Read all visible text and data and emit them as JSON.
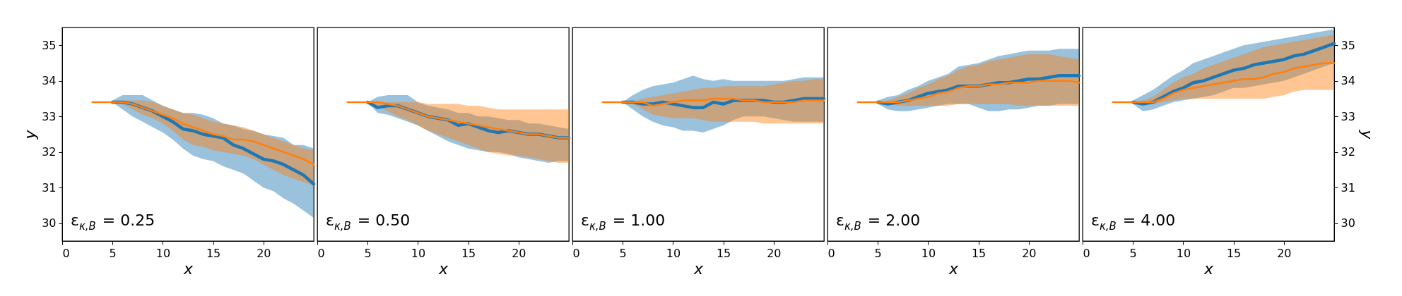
{
  "chart_data": [
    {
      "type": "line",
      "xlabel": "x",
      "ylabel": "y",
      "xlim": [
        0,
        25
      ],
      "xticks": [
        0,
        5,
        10,
        15,
        20
      ],
      "ylim": [
        29.5,
        35.5
      ],
      "yticks": [
        30,
        31,
        32,
        33,
        34,
        35
      ],
      "annotations": [
        "ε$_{κ,B}$ = 0.25"
      ],
      "x": [
        3,
        4,
        5,
        6,
        7,
        8,
        9,
        10,
        11,
        12,
        13,
        14,
        15,
        16,
        17,
        18,
        19,
        20,
        21,
        22,
        23,
        24,
        25
      ],
      "series": [
        {
          "color": "#1f77b4",
          "values": [
            null,
            null,
            33.4,
            33.4,
            33.35,
            33.25,
            33.15,
            33.0,
            32.85,
            32.65,
            32.6,
            32.5,
            32.45,
            32.4,
            32.2,
            32.1,
            31.95,
            31.8,
            31.75,
            31.65,
            31.5,
            31.35,
            31.1
          ],
          "lower": [
            null,
            null,
            33.4,
            33.2,
            33.0,
            32.85,
            32.7,
            32.55,
            32.35,
            32.1,
            31.9,
            31.8,
            31.75,
            31.6,
            31.5,
            31.4,
            31.2,
            31.0,
            30.9,
            30.7,
            30.55,
            30.35,
            30.15
          ],
          "upper": [
            null,
            null,
            33.45,
            33.6,
            33.6,
            33.6,
            33.45,
            33.3,
            33.2,
            33.1,
            33.1,
            33.05,
            32.95,
            32.8,
            32.75,
            32.65,
            32.6,
            32.5,
            32.45,
            32.4,
            32.2,
            32.2,
            32.1
          ]
        },
        {
          "color": "#ff7f0e",
          "values": [
            33.4,
            33.4,
            33.4,
            33.4,
            33.35,
            33.25,
            33.15,
            33.05,
            32.95,
            32.8,
            32.7,
            32.6,
            32.5,
            32.45,
            32.35,
            32.35,
            32.3,
            32.2,
            32.1,
            32.0,
            31.9,
            31.8,
            31.65
          ],
          "lower": [
            33.4,
            33.4,
            33.4,
            33.35,
            33.2,
            33.05,
            32.95,
            32.8,
            32.6,
            32.35,
            32.2,
            32.15,
            32.05,
            32.0,
            31.95,
            31.9,
            31.8,
            31.65,
            31.5,
            31.35,
            31.25,
            31.15,
            31.05
          ],
          "upper": [
            33.4,
            33.4,
            33.4,
            33.45,
            33.45,
            33.45,
            33.4,
            33.3,
            33.2,
            33.1,
            33.05,
            32.95,
            32.85,
            32.8,
            32.75,
            32.7,
            32.6,
            32.5,
            32.4,
            32.3,
            32.2,
            32.1,
            32.05
          ]
        }
      ]
    },
    {
      "type": "line",
      "xlabel": "x",
      "xlim": [
        0,
        25
      ],
      "xticks": [
        0,
        5,
        10,
        15,
        20
      ],
      "ylim": [
        29.5,
        35.5
      ],
      "yticks": [
        30,
        31,
        32,
        33,
        34,
        35
      ],
      "tick_labels": "x",
      "annotations": [
        "ε$_{κ,B}$ = 0.50"
      ],
      "x": [
        3,
        4,
        5,
        6,
        7,
        8,
        9,
        10,
        11,
        12,
        13,
        14,
        15,
        16,
        17,
        18,
        19,
        20,
        21,
        22,
        23,
        24,
        25
      ],
      "series": [
        {
          "color": "#1f77b4",
          "values": [
            null,
            null,
            33.4,
            33.25,
            33.3,
            33.3,
            33.2,
            33.1,
            33.0,
            32.95,
            32.9,
            32.75,
            32.8,
            32.7,
            32.6,
            32.55,
            32.6,
            32.55,
            32.5,
            32.5,
            32.45,
            32.4,
            32.4
          ],
          "lower": [
            null,
            null,
            33.4,
            33.1,
            33.05,
            32.95,
            32.85,
            32.75,
            32.6,
            32.45,
            32.3,
            32.2,
            32.1,
            32.05,
            32.0,
            32.0,
            31.95,
            31.85,
            31.8,
            31.75,
            31.7,
            31.75,
            31.75
          ],
          "upper": [
            null,
            null,
            33.4,
            33.55,
            33.6,
            33.6,
            33.6,
            33.4,
            33.3,
            33.25,
            33.2,
            33.1,
            33.1,
            33.0,
            33.0,
            32.95,
            32.9,
            32.9,
            32.8,
            32.8,
            32.75,
            32.7,
            32.65
          ]
        },
        {
          "color": "#ff7f0e",
          "values": [
            33.4,
            33.4,
            33.4,
            33.4,
            33.35,
            33.3,
            33.2,
            33.1,
            33.0,
            32.95,
            32.9,
            32.85,
            32.8,
            32.75,
            32.7,
            32.65,
            32.6,
            32.55,
            32.5,
            32.5,
            32.45,
            32.4,
            32.4
          ],
          "lower": [
            33.4,
            33.4,
            33.4,
            33.3,
            33.15,
            33.0,
            32.9,
            32.75,
            32.6,
            32.5,
            32.4,
            32.3,
            32.2,
            32.1,
            32.0,
            31.95,
            31.9,
            31.9,
            31.85,
            31.8,
            31.75,
            31.7,
            31.7
          ],
          "upper": [
            33.4,
            33.4,
            33.4,
            33.4,
            33.4,
            33.4,
            33.4,
            33.4,
            33.35,
            33.35,
            33.35,
            33.35,
            33.3,
            33.3,
            33.25,
            33.2,
            33.2,
            33.2,
            33.2,
            33.2,
            33.2,
            33.2,
            33.2
          ]
        }
      ]
    },
    {
      "type": "line",
      "xlabel": "x",
      "xlim": [
        0,
        25
      ],
      "xticks": [
        0,
        5,
        10,
        15,
        20
      ],
      "ylim": [
        29.5,
        35.5
      ],
      "yticks": [
        30,
        31,
        32,
        33,
        34,
        35
      ],
      "tick_labels": "x",
      "annotations": [
        "ε$_{κ,B}$ = 1.00"
      ],
      "x": [
        3,
        4,
        5,
        6,
        7,
        8,
        9,
        10,
        11,
        12,
        13,
        14,
        15,
        16,
        17,
        18,
        19,
        20,
        21,
        22,
        23,
        24,
        25
      ],
      "series": [
        {
          "color": "#1f77b4",
          "values": [
            null,
            null,
            33.4,
            33.4,
            33.35,
            33.35,
            33.4,
            33.35,
            33.3,
            33.25,
            33.25,
            33.4,
            33.35,
            33.45,
            33.45,
            33.45,
            33.45,
            33.4,
            33.4,
            33.45,
            33.5,
            33.5,
            33.5
          ],
          "lower": [
            null,
            null,
            33.4,
            33.2,
            33.0,
            32.85,
            32.75,
            32.7,
            32.6,
            32.6,
            32.55,
            32.65,
            32.75,
            32.9,
            33.0,
            33.0,
            33.0,
            32.95,
            32.9,
            32.85,
            32.85,
            32.85,
            32.85
          ],
          "upper": [
            null,
            null,
            33.4,
            33.6,
            33.75,
            33.85,
            33.9,
            33.95,
            34.05,
            34.15,
            34.05,
            34.0,
            34.05,
            34.0,
            34.0,
            34.0,
            34.0,
            34.0,
            34.0,
            34.05,
            34.1,
            34.1,
            34.1
          ]
        },
        {
          "color": "#ff7f0e",
          "values": [
            33.4,
            33.4,
            33.4,
            33.4,
            33.4,
            33.3,
            33.35,
            33.4,
            33.45,
            33.45,
            33.45,
            33.5,
            33.5,
            33.5,
            33.45,
            33.45,
            33.4,
            33.4,
            33.4,
            33.4,
            33.45,
            33.45,
            33.45
          ],
          "lower": [
            33.4,
            33.4,
            33.4,
            33.35,
            33.2,
            33.05,
            33.0,
            32.95,
            32.95,
            32.95,
            32.9,
            32.85,
            32.85,
            32.85,
            32.85,
            32.85,
            32.8,
            32.8,
            32.8,
            32.8,
            32.8,
            32.8,
            32.8
          ],
          "upper": [
            33.4,
            33.4,
            33.4,
            33.4,
            33.5,
            33.55,
            33.6,
            33.65,
            33.7,
            33.75,
            33.8,
            33.8,
            33.85,
            33.85,
            33.85,
            33.85,
            33.85,
            33.9,
            33.95,
            34.0,
            34.0,
            34.05,
            34.05
          ]
        }
      ]
    },
    {
      "type": "line",
      "xlabel": "x",
      "xlim": [
        0,
        25
      ],
      "xticks": [
        0,
        5,
        10,
        15,
        20
      ],
      "ylim": [
        29.5,
        35.5
      ],
      "yticks": [
        30,
        31,
        32,
        33,
        34,
        35
      ],
      "tick_labels": "x",
      "annotations": [
        "ε$_{κ,B}$ = 2.00"
      ],
      "x": [
        3,
        4,
        5,
        6,
        7,
        8,
        9,
        10,
        11,
        12,
        13,
        14,
        15,
        16,
        17,
        18,
        19,
        20,
        21,
        22,
        23,
        24,
        25
      ],
      "series": [
        {
          "color": "#1f77b4",
          "values": [
            null,
            null,
            33.4,
            33.35,
            33.4,
            33.45,
            33.55,
            33.65,
            33.7,
            33.75,
            33.85,
            33.85,
            33.85,
            33.9,
            33.95,
            33.95,
            34.0,
            34.05,
            34.05,
            34.1,
            34.15,
            34.15,
            34.15
          ],
          "lower": [
            null,
            null,
            33.35,
            33.2,
            33.15,
            33.15,
            33.2,
            33.25,
            33.3,
            33.35,
            33.35,
            33.35,
            33.25,
            33.15,
            33.15,
            33.2,
            33.2,
            33.25,
            33.3,
            33.3,
            33.35,
            33.35,
            33.35
          ],
          "upper": [
            null,
            null,
            33.45,
            33.55,
            33.6,
            33.75,
            33.85,
            34.0,
            34.1,
            34.2,
            34.4,
            34.45,
            34.5,
            34.6,
            34.7,
            34.75,
            34.8,
            34.85,
            34.85,
            34.85,
            34.9,
            34.9,
            34.9
          ]
        },
        {
          "color": "#ff7f0e",
          "values": [
            33.4,
            33.4,
            33.4,
            33.4,
            33.4,
            33.45,
            33.5,
            33.55,
            33.65,
            33.7,
            33.8,
            33.85,
            33.85,
            33.9,
            33.9,
            33.95,
            33.95,
            33.95,
            34.0,
            34.0,
            34.0,
            34.0,
            33.95
          ],
          "lower": [
            33.4,
            33.4,
            33.4,
            33.35,
            33.3,
            33.3,
            33.3,
            33.3,
            33.3,
            33.3,
            33.35,
            33.35,
            33.35,
            33.35,
            33.35,
            33.35,
            33.3,
            33.3,
            33.3,
            33.3,
            33.3,
            33.3,
            33.3
          ],
          "upper": [
            33.4,
            33.4,
            33.4,
            33.45,
            33.55,
            33.65,
            33.8,
            33.9,
            34.05,
            34.15,
            34.3,
            34.4,
            34.45,
            34.55,
            34.6,
            34.65,
            34.7,
            34.75,
            34.75,
            34.75,
            34.7,
            34.65,
            34.6
          ]
        }
      ]
    },
    {
      "type": "line",
      "xlabel": "x",
      "y2label": "y",
      "xlim": [
        0,
        25
      ],
      "xticks": [
        0,
        5,
        10,
        15,
        20
      ],
      "y2lim": [
        29.5,
        35.5
      ],
      "y2ticks": [
        30,
        31,
        32,
        33,
        34,
        35
      ],
      "annotations": [
        "ε$_{κ,B}$ = 4.00"
      ],
      "x": [
        3,
        4,
        5,
        6,
        7,
        8,
        9,
        10,
        11,
        12,
        13,
        14,
        15,
        16,
        17,
        18,
        19,
        20,
        21,
        22,
        23,
        24,
        25
      ],
      "series": [
        {
          "axis": "y2",
          "color": "#1f77b4",
          "values": [
            null,
            null,
            33.4,
            33.35,
            33.4,
            33.55,
            33.7,
            33.8,
            33.95,
            34.0,
            34.1,
            34.2,
            34.3,
            34.35,
            34.45,
            34.5,
            34.55,
            34.6,
            34.7,
            34.75,
            34.85,
            34.95,
            35.05
          ],
          "lower": [
            null,
            null,
            33.35,
            33.15,
            33.2,
            33.3,
            33.4,
            33.45,
            33.5,
            33.55,
            33.6,
            33.7,
            33.8,
            33.8,
            33.85,
            33.9,
            33.95,
            34.0,
            34.1,
            34.2,
            34.3,
            34.4,
            34.5
          ],
          "upper": [
            null,
            null,
            33.45,
            33.6,
            33.75,
            33.95,
            34.15,
            34.3,
            34.5,
            34.6,
            34.7,
            34.8,
            34.9,
            35.0,
            35.05,
            35.1,
            35.15,
            35.2,
            35.25,
            35.3,
            35.35,
            35.4,
            35.45
          ]
        },
        {
          "axis": "y2",
          "color": "#ff7f0e",
          "values": [
            33.4,
            33.4,
            33.4,
            33.4,
            33.4,
            33.5,
            33.65,
            33.75,
            33.8,
            33.85,
            33.9,
            33.95,
            34.0,
            34.05,
            34.05,
            34.1,
            34.2,
            34.25,
            34.35,
            34.4,
            34.45,
            34.5,
            34.5
          ],
          "lower": [
            33.4,
            33.4,
            33.4,
            33.35,
            33.35,
            33.4,
            33.45,
            33.5,
            33.5,
            33.5,
            33.5,
            33.5,
            33.5,
            33.5,
            33.5,
            33.5,
            33.55,
            33.6,
            33.7,
            33.75,
            33.75,
            33.75,
            33.75
          ],
          "upper": [
            33.4,
            33.4,
            33.4,
            33.45,
            33.55,
            33.75,
            33.95,
            34.1,
            34.2,
            34.35,
            34.45,
            34.55,
            34.65,
            34.75,
            34.85,
            34.95,
            35.0,
            35.05,
            35.1,
            35.15,
            35.2,
            35.25,
            35.3
          ]
        }
      ]
    }
  ]
}
